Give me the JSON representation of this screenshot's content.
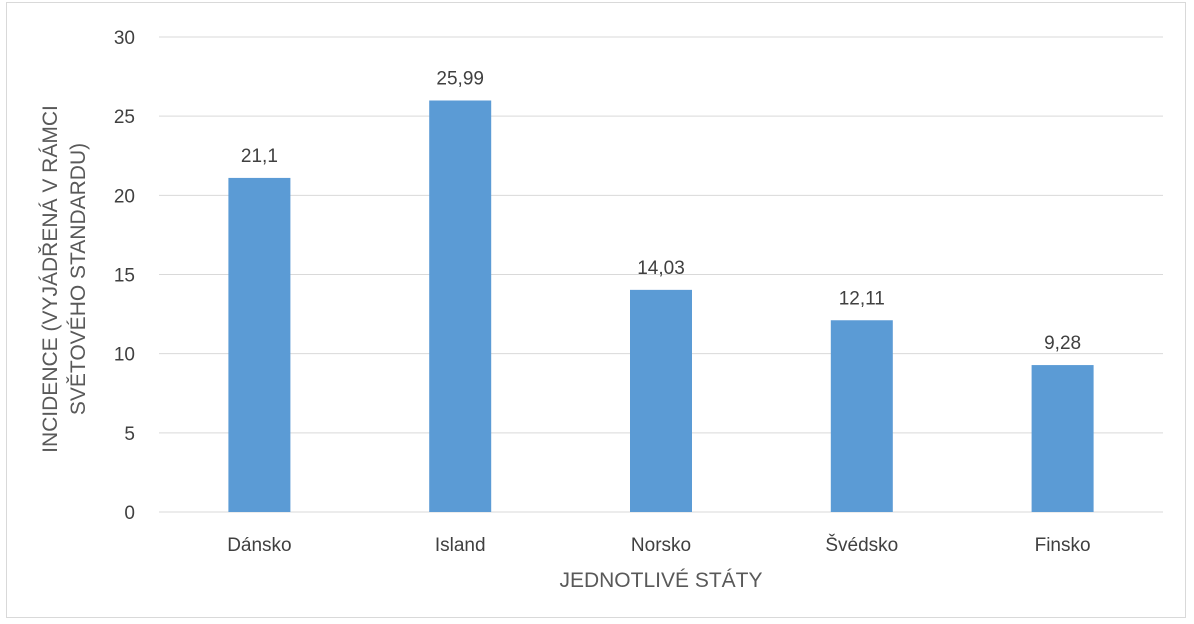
{
  "chart_data": {
    "type": "bar",
    "categories": [
      "Dánsko",
      "Island",
      "Norsko",
      "Švédsko",
      "Finsko"
    ],
    "values": [
      21.1,
      25.99,
      14.03,
      12.11,
      9.28
    ],
    "value_labels": [
      "21,1",
      "25,99",
      "14,03",
      "12,11",
      "9,28"
    ],
    "title": "",
    "xlabel": "JEDNOTLIVÉ STÁTY",
    "ylabel_lines": [
      "INCIDENCE (VYJÁDŘENÁ V RÁMCI",
      "SVĚTOVÉHO STANDARDU)"
    ],
    "ylim": [
      0,
      30
    ],
    "yticks": [
      0,
      5,
      10,
      15,
      20,
      25,
      30
    ],
    "grid": true,
    "legend": "none",
    "bar_color": "#5b9bd5",
    "grid_color": "#d9d9d9"
  }
}
